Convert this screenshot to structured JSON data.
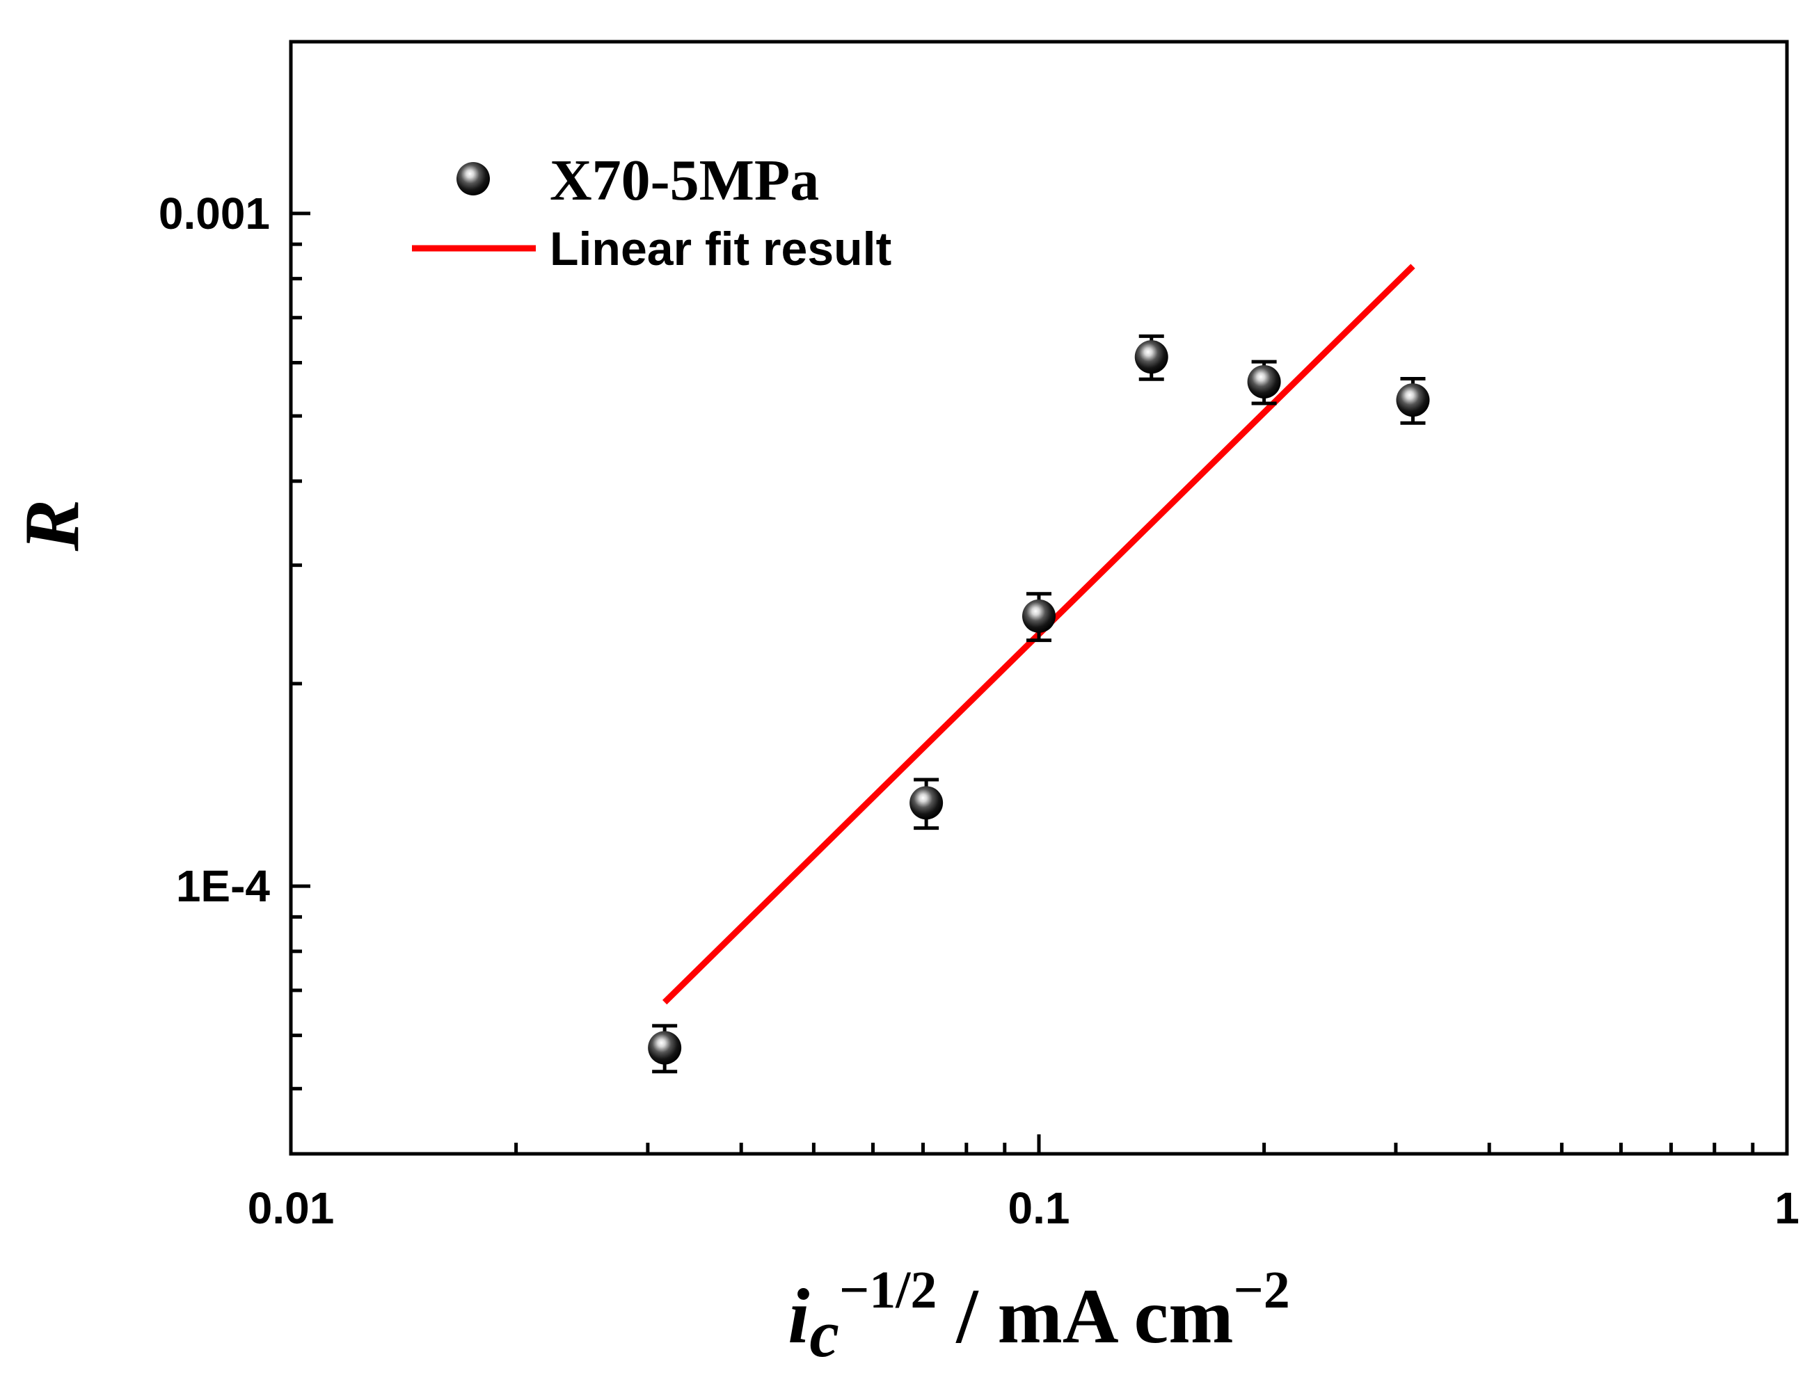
{
  "chart_data": {
    "type": "scatter",
    "title": "",
    "xscale": "log",
    "yscale": "log",
    "xlim": [
      0.01,
      1
    ],
    "ylim": [
      4e-05,
      0.0018
    ],
    "x_ticks": [
      {
        "value": 0.01,
        "label": "0.01"
      },
      {
        "value": 0.1,
        "label": "0.1"
      },
      {
        "value": 1,
        "label": "1"
      }
    ],
    "y_ticks": [
      {
        "value": 0.0001,
        "label": "1E-4"
      },
      {
        "value": 0.001,
        "label": "0.001"
      }
    ],
    "xlabel": {
      "main": "i",
      "sub": "c",
      "sup": "−1/2",
      "rest": " / mA cm",
      "unit_sup": "−2"
    },
    "ylabel": "R",
    "series": [
      {
        "name": "X70-5MPa",
        "kind": "scatter",
        "color": "#000000",
        "points": [
          {
            "x": 0.0316,
            "y": 5.75e-05,
            "err": 4.5e-06
          },
          {
            "x": 0.0707,
            "y": 0.000133,
            "err": 1.1e-05
          },
          {
            "x": 0.1,
            "y": 0.000252,
            "err": 2e-05
          },
          {
            "x": 0.1414,
            "y": 0.000612,
            "err": 4.5e-05
          },
          {
            "x": 0.2,
            "y": 0.000562,
            "err": 4e-05
          },
          {
            "x": 0.3162,
            "y": 0.000528,
            "err": 4e-05
          }
        ]
      },
      {
        "name": "Linear fit result",
        "kind": "line",
        "color": "#ff0000",
        "x": [
          0.0316,
          0.3162
        ],
        "y": [
          6.72e-05,
          0.000835
        ]
      }
    ],
    "legend_position": "top-left"
  }
}
